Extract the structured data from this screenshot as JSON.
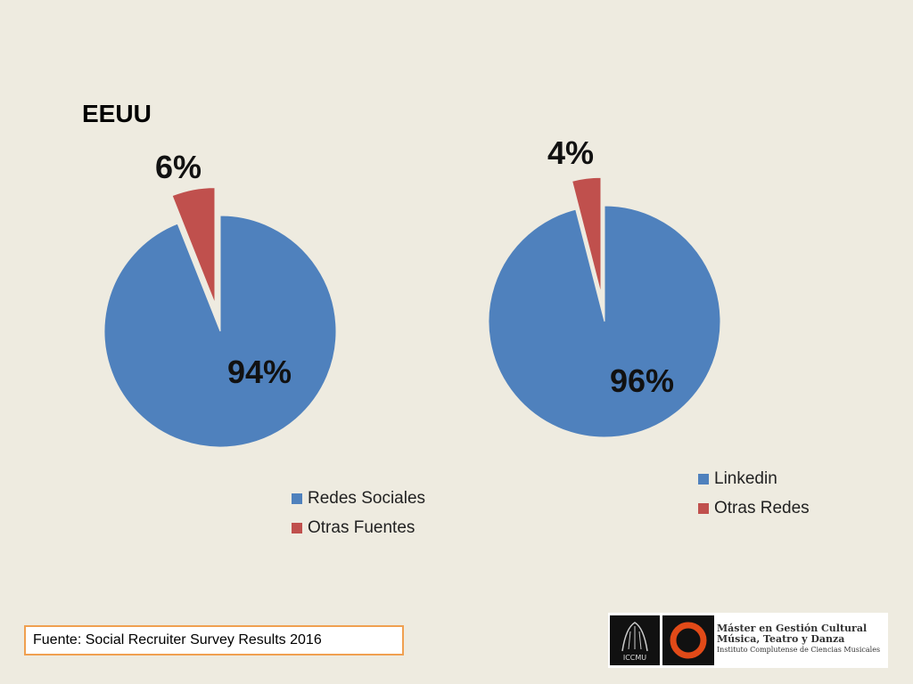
{
  "slide": {
    "title": "EEUU",
    "source": "Fuente: Social Recruiter Survey Results 2016",
    "logo": {
      "iccmu": "ICCMU",
      "line1": "Máster en Gestión Cultural",
      "line2": "Música, Teatro y Danza",
      "line3": "Instituto Complutense de Ciencias Musicales"
    }
  },
  "colors": {
    "blue": "#4f81bd",
    "red": "#c0504d",
    "background": "#eeebe0",
    "source_border": "#f0a050"
  },
  "chart_data": [
    {
      "type": "pie",
      "title": "",
      "slices": [
        {
          "name": "Redes Sociales",
          "value": 94,
          "label": "94%",
          "color": "#4f81bd",
          "exploded": false
        },
        {
          "name": "Otras Fuentes",
          "value": 6,
          "label": "6%",
          "color": "#c0504d",
          "exploded": true
        }
      ],
      "legend_position": "bottom-right"
    },
    {
      "type": "pie",
      "title": "",
      "slices": [
        {
          "name": "Linkedin",
          "value": 96,
          "label": "96%",
          "color": "#4f81bd",
          "exploded": false
        },
        {
          "name": "Otras Redes",
          "value": 4,
          "label": "4%",
          "color": "#c0504d",
          "exploded": true
        }
      ],
      "legend_position": "bottom-right"
    }
  ]
}
